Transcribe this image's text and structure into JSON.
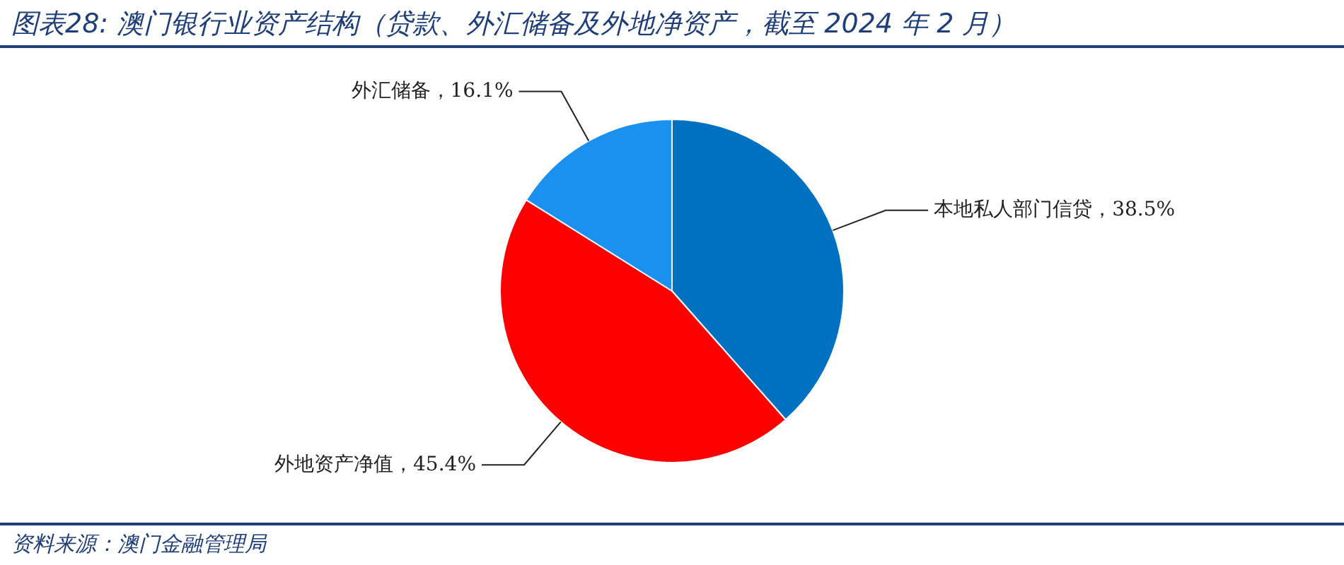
{
  "chart_data": {
    "type": "pie",
    "title": "图表28:  澳门银行业资产结构（贷款、外汇储备及外地净资产，截至 2024 年 2 月）",
    "categories": [
      "本地私人部门信贷",
      "外地资产净值",
      "外汇储备"
    ],
    "values": [
      38.5,
      45.4,
      16.1
    ],
    "value_labels": [
      "38.5%",
      "45.4%",
      "16.1%"
    ],
    "colors": [
      "#0070c0",
      "#ff0000",
      "#1a90f0"
    ],
    "legend": false,
    "annotations": [
      "资料来源：澳门金融管理局"
    ]
  }
}
